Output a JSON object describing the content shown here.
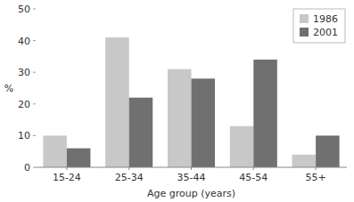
{
  "chart_data": {
    "type": "bar",
    "categories": [
      "15-24",
      "25-34",
      "35-44",
      "45-54",
      "55+"
    ],
    "series": [
      {
        "name": "1986",
        "color": "#c8c8c8",
        "values": [
          10,
          41,
          31,
          13,
          4
        ]
      },
      {
        "name": "2001",
        "color": "#707070",
        "values": [
          6,
          22,
          28,
          34,
          10
        ]
      }
    ],
    "xlabel": "Age group (years)",
    "ylabel": "%",
    "ylim": [
      0,
      50
    ],
    "yticks": [
      0,
      10,
      20,
      30,
      40,
      50
    ],
    "legend": "upper right",
    "grid": false
  }
}
